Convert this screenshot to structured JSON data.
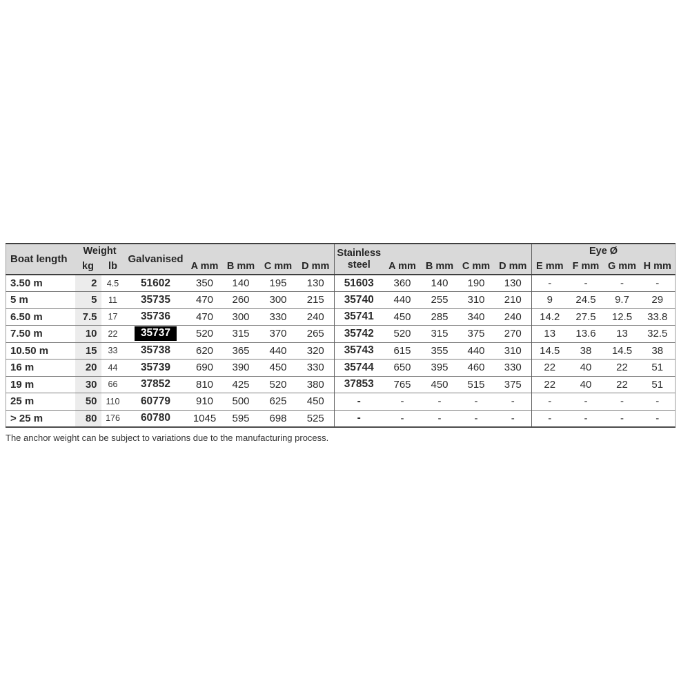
{
  "table": {
    "header": {
      "boat_length": "Boat length",
      "weight": "Weight",
      "kg": "kg",
      "lb": "lb",
      "galvanised": "Galvanised",
      "a_mm": "A mm",
      "b_mm": "B mm",
      "c_mm": "C mm",
      "d_mm": "D mm",
      "stainless_steel": "Stainless steel",
      "eye_diameter": "Eye Ø",
      "e_mm": "E mm",
      "f_mm": "F mm",
      "g_mm": "G mm",
      "h_mm": "H mm"
    },
    "highlighted_galvanised_code": "35737",
    "rows": [
      {
        "boat": "3.50 m",
        "kg": "2",
        "lb": "4.5",
        "galv": "51602",
        "a": "350",
        "b": "140",
        "c": "195",
        "d": "130",
        "ss": "51603",
        "sa": "360",
        "sb": "140",
        "sc": "190",
        "sd": "130",
        "e": "-",
        "f": "-",
        "g": "-",
        "h": "-"
      },
      {
        "boat": "5 m",
        "kg": "5",
        "lb": "11",
        "galv": "35735",
        "a": "470",
        "b": "260",
        "c": "300",
        "d": "215",
        "ss": "35740",
        "sa": "440",
        "sb": "255",
        "sc": "310",
        "sd": "210",
        "e": "9",
        "f": "24.5",
        "g": "9.7",
        "h": "29"
      },
      {
        "boat": "6.50 m",
        "kg": "7.5",
        "lb": "17",
        "galv": "35736",
        "a": "470",
        "b": "300",
        "c": "330",
        "d": "240",
        "ss": "35741",
        "sa": "450",
        "sb": "285",
        "sc": "340",
        "sd": "240",
        "e": "14.2",
        "f": "27.5",
        "g": "12.5",
        "h": "33.8"
      },
      {
        "boat": "7.50 m",
        "kg": "10",
        "lb": "22",
        "galv": "35737",
        "highlight": true,
        "a": "520",
        "b": "315",
        "c": "370",
        "d": "265",
        "ss": "35742",
        "sa": "520",
        "sb": "315",
        "sc": "375",
        "sd": "270",
        "e": "13",
        "f": "13.6",
        "g": "13",
        "h": "32.5"
      },
      {
        "boat": "10.50 m",
        "kg": "15",
        "lb": "33",
        "galv": "35738",
        "a": "620",
        "b": "365",
        "c": "440",
        "d": "320",
        "ss": "35743",
        "sa": "615",
        "sb": "355",
        "sc": "440",
        "sd": "310",
        "e": "14.5",
        "f": "38",
        "g": "14.5",
        "h": "38"
      },
      {
        "boat": "16 m",
        "kg": "20",
        "lb": "44",
        "galv": "35739",
        "a": "690",
        "b": "390",
        "c": "450",
        "d": "330",
        "ss": "35744",
        "sa": "650",
        "sb": "395",
        "sc": "460",
        "sd": "330",
        "e": "22",
        "f": "40",
        "g": "22",
        "h": "51"
      },
      {
        "boat": "19 m",
        "kg": "30",
        "lb": "66",
        "galv": "37852",
        "a": "810",
        "b": "425",
        "c": "520",
        "d": "380",
        "ss": "37853",
        "sa": "765",
        "sb": "450",
        "sc": "515",
        "sd": "375",
        "e": "22",
        "f": "40",
        "g": "22",
        "h": "51"
      },
      {
        "boat": "25 m",
        "kg": "50",
        "lb": "110",
        "galv": "60779",
        "a": "910",
        "b": "500",
        "c": "625",
        "d": "450",
        "ss": "-",
        "sa": "-",
        "sb": "-",
        "sc": "-",
        "sd": "-",
        "e": "-",
        "f": "-",
        "g": "-",
        "h": "-"
      },
      {
        "boat": "> 25 m",
        "kg": "80",
        "lb": "176",
        "galv": "60780",
        "a": "1045",
        "b": "595",
        "c": "698",
        "d": "525",
        "ss": "-",
        "sa": "-",
        "sb": "-",
        "sc": "-",
        "sd": "-",
        "e": "-",
        "f": "-",
        "g": "-",
        "h": "-"
      }
    ]
  },
  "footnote": "The anchor weight can be subject to variations due to the manufacturing process.",
  "colors": {
    "header_bg": "#d9d9d9",
    "kg_column_bg": "#ececec",
    "highlight_bg": "#000000",
    "highlight_text": "#ffffff",
    "text": "#2b2b2b"
  }
}
